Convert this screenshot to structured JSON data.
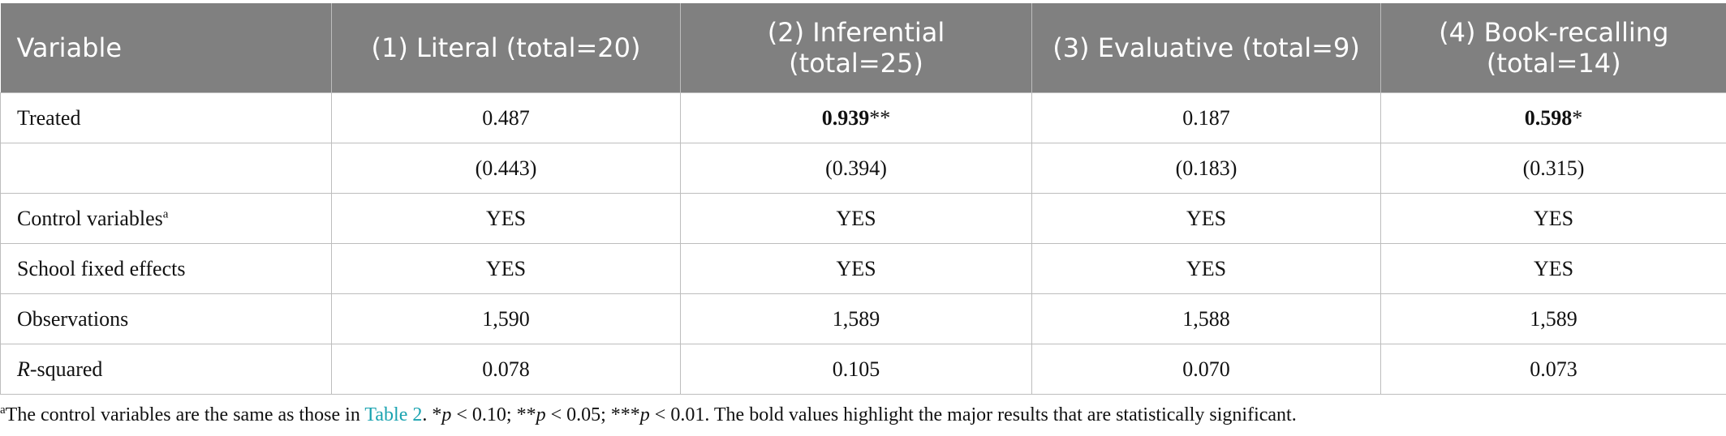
{
  "table": {
    "header": [
      "Variable",
      "(1) Literal (total=20)",
      "(2) Inferential (total=25)",
      "(3) Evaluative (total=9)",
      "(4) Book-recalling (total=14)"
    ],
    "rows": [
      {
        "label": "Treated",
        "values": [
          "0.487",
          {
            "bold": "0.939",
            "stars": "**"
          },
          "0.187",
          {
            "bold": "0.598",
            "stars": "*"
          }
        ]
      },
      {
        "values": [
          "(0.443)",
          "(0.394)",
          "(0.183)",
          "(0.315)"
        ]
      },
      {
        "label": "Control variables",
        "label_note": "a",
        "values": [
          "YES",
          "YES",
          "YES",
          "YES"
        ]
      },
      {
        "label": "School fixed effects",
        "values": [
          "YES",
          "YES",
          "YES",
          "YES"
        ]
      },
      {
        "label": "Observations",
        "values": [
          "1,590",
          "1,589",
          "1,588",
          "1,589"
        ]
      },
      {
        "label_italic": "R",
        "label": "-squared",
        "values": [
          "0.078",
          "0.105",
          "0.070",
          "0.073"
        ]
      }
    ]
  },
  "footnote": {
    "marker": "a",
    "parts": [
      "The control variables are the same as those in ",
      "Table 2",
      ". *",
      "p",
      " < 0.10; **",
      "p",
      " < 0.05; ***",
      "p",
      " < 0.01. The bold values highlight the major results that are statistically significant."
    ]
  }
}
